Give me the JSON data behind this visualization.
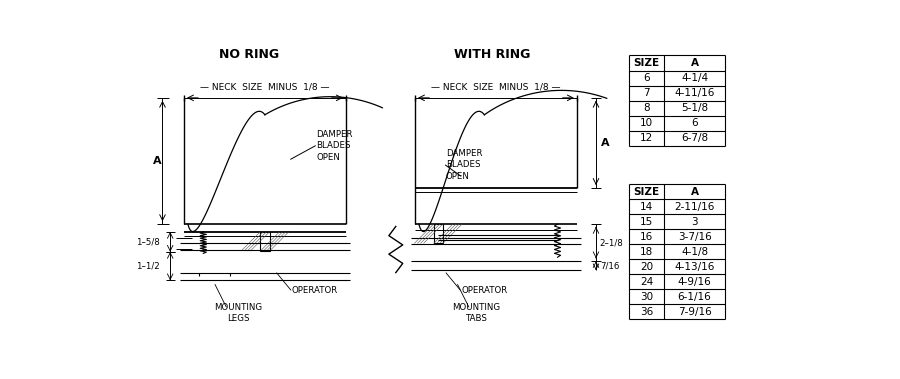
{
  "bg_color": "#ffffff",
  "table1": {
    "headers": [
      "SIZE",
      "A"
    ],
    "rows": [
      [
        "6",
        "4-1/4"
      ],
      [
        "7",
        "4-11/16"
      ],
      [
        "8",
        "5-1/8"
      ],
      [
        "10",
        "6"
      ],
      [
        "12",
        "6-7/8"
      ]
    ]
  },
  "table2": {
    "headers": [
      "SIZE",
      "A"
    ],
    "rows": [
      [
        "14",
        "2-11/16"
      ],
      [
        "15",
        "3"
      ],
      [
        "16",
        "3-7/16"
      ],
      [
        "18",
        "4-1/8"
      ],
      [
        "20",
        "4-13/16"
      ],
      [
        "24",
        "4-9/16"
      ],
      [
        "30",
        "6-1/16"
      ],
      [
        "36",
        "7-9/16"
      ]
    ]
  },
  "label_no_ring": "NO RING",
  "label_with_ring": "WITH RING"
}
